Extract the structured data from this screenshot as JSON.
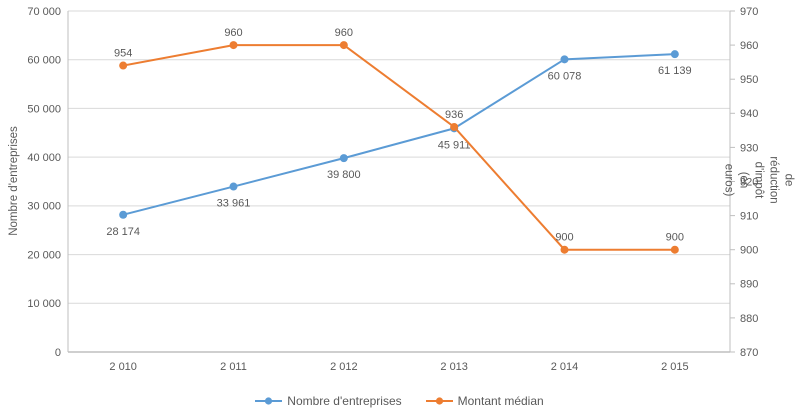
{
  "chart_data": {
    "type": "line",
    "categories": [
      "2 010",
      "2 011",
      "2 012",
      "2 013",
      "2 014",
      "2 015"
    ],
    "series": [
      {
        "name": "Nombre d'entreprises",
        "axis": "left",
        "color": "#5B9BD5",
        "values": [
          28174,
          33961,
          39800,
          45911,
          60078,
          61139
        ],
        "point_labels": [
          "28 174",
          "33 961",
          "39 800",
          "45 911",
          "60 078",
          "61 139"
        ],
        "label_position": "below"
      },
      {
        "name": "Montant médian",
        "axis": "right",
        "color": "#ED7D31",
        "values": [
          954,
          960,
          960,
          936,
          900,
          900
        ],
        "point_labels": [
          "954",
          "960",
          "960",
          "936",
          "900",
          "900"
        ],
        "label_position": "above"
      }
    ],
    "left_axis": {
      "title": "Nombre d'entreprises",
      "min": 0,
      "max": 70000,
      "step": 10000,
      "tick_labels": [
        "0",
        "10 000",
        "20 000",
        "30 000",
        "40 000",
        "50 000",
        "60 000",
        "70 000"
      ]
    },
    "right_axis": {
      "title": "Montant médian de réduction d'impôt (en euros)",
      "title_line1": "Montant médian de réduction d'impôt (en",
      "title_line2": "euros)",
      "min": 870,
      "max": 970,
      "step": 10,
      "tick_labels": [
        "870",
        "880",
        "890",
        "900",
        "910",
        "920",
        "930",
        "940",
        "950",
        "960",
        "970"
      ]
    },
    "legend_position": "bottom",
    "grid": "horizontal",
    "colors": {
      "grid": "#D9D9D9",
      "axis": "#BFBFBF",
      "text": "#595959"
    }
  }
}
